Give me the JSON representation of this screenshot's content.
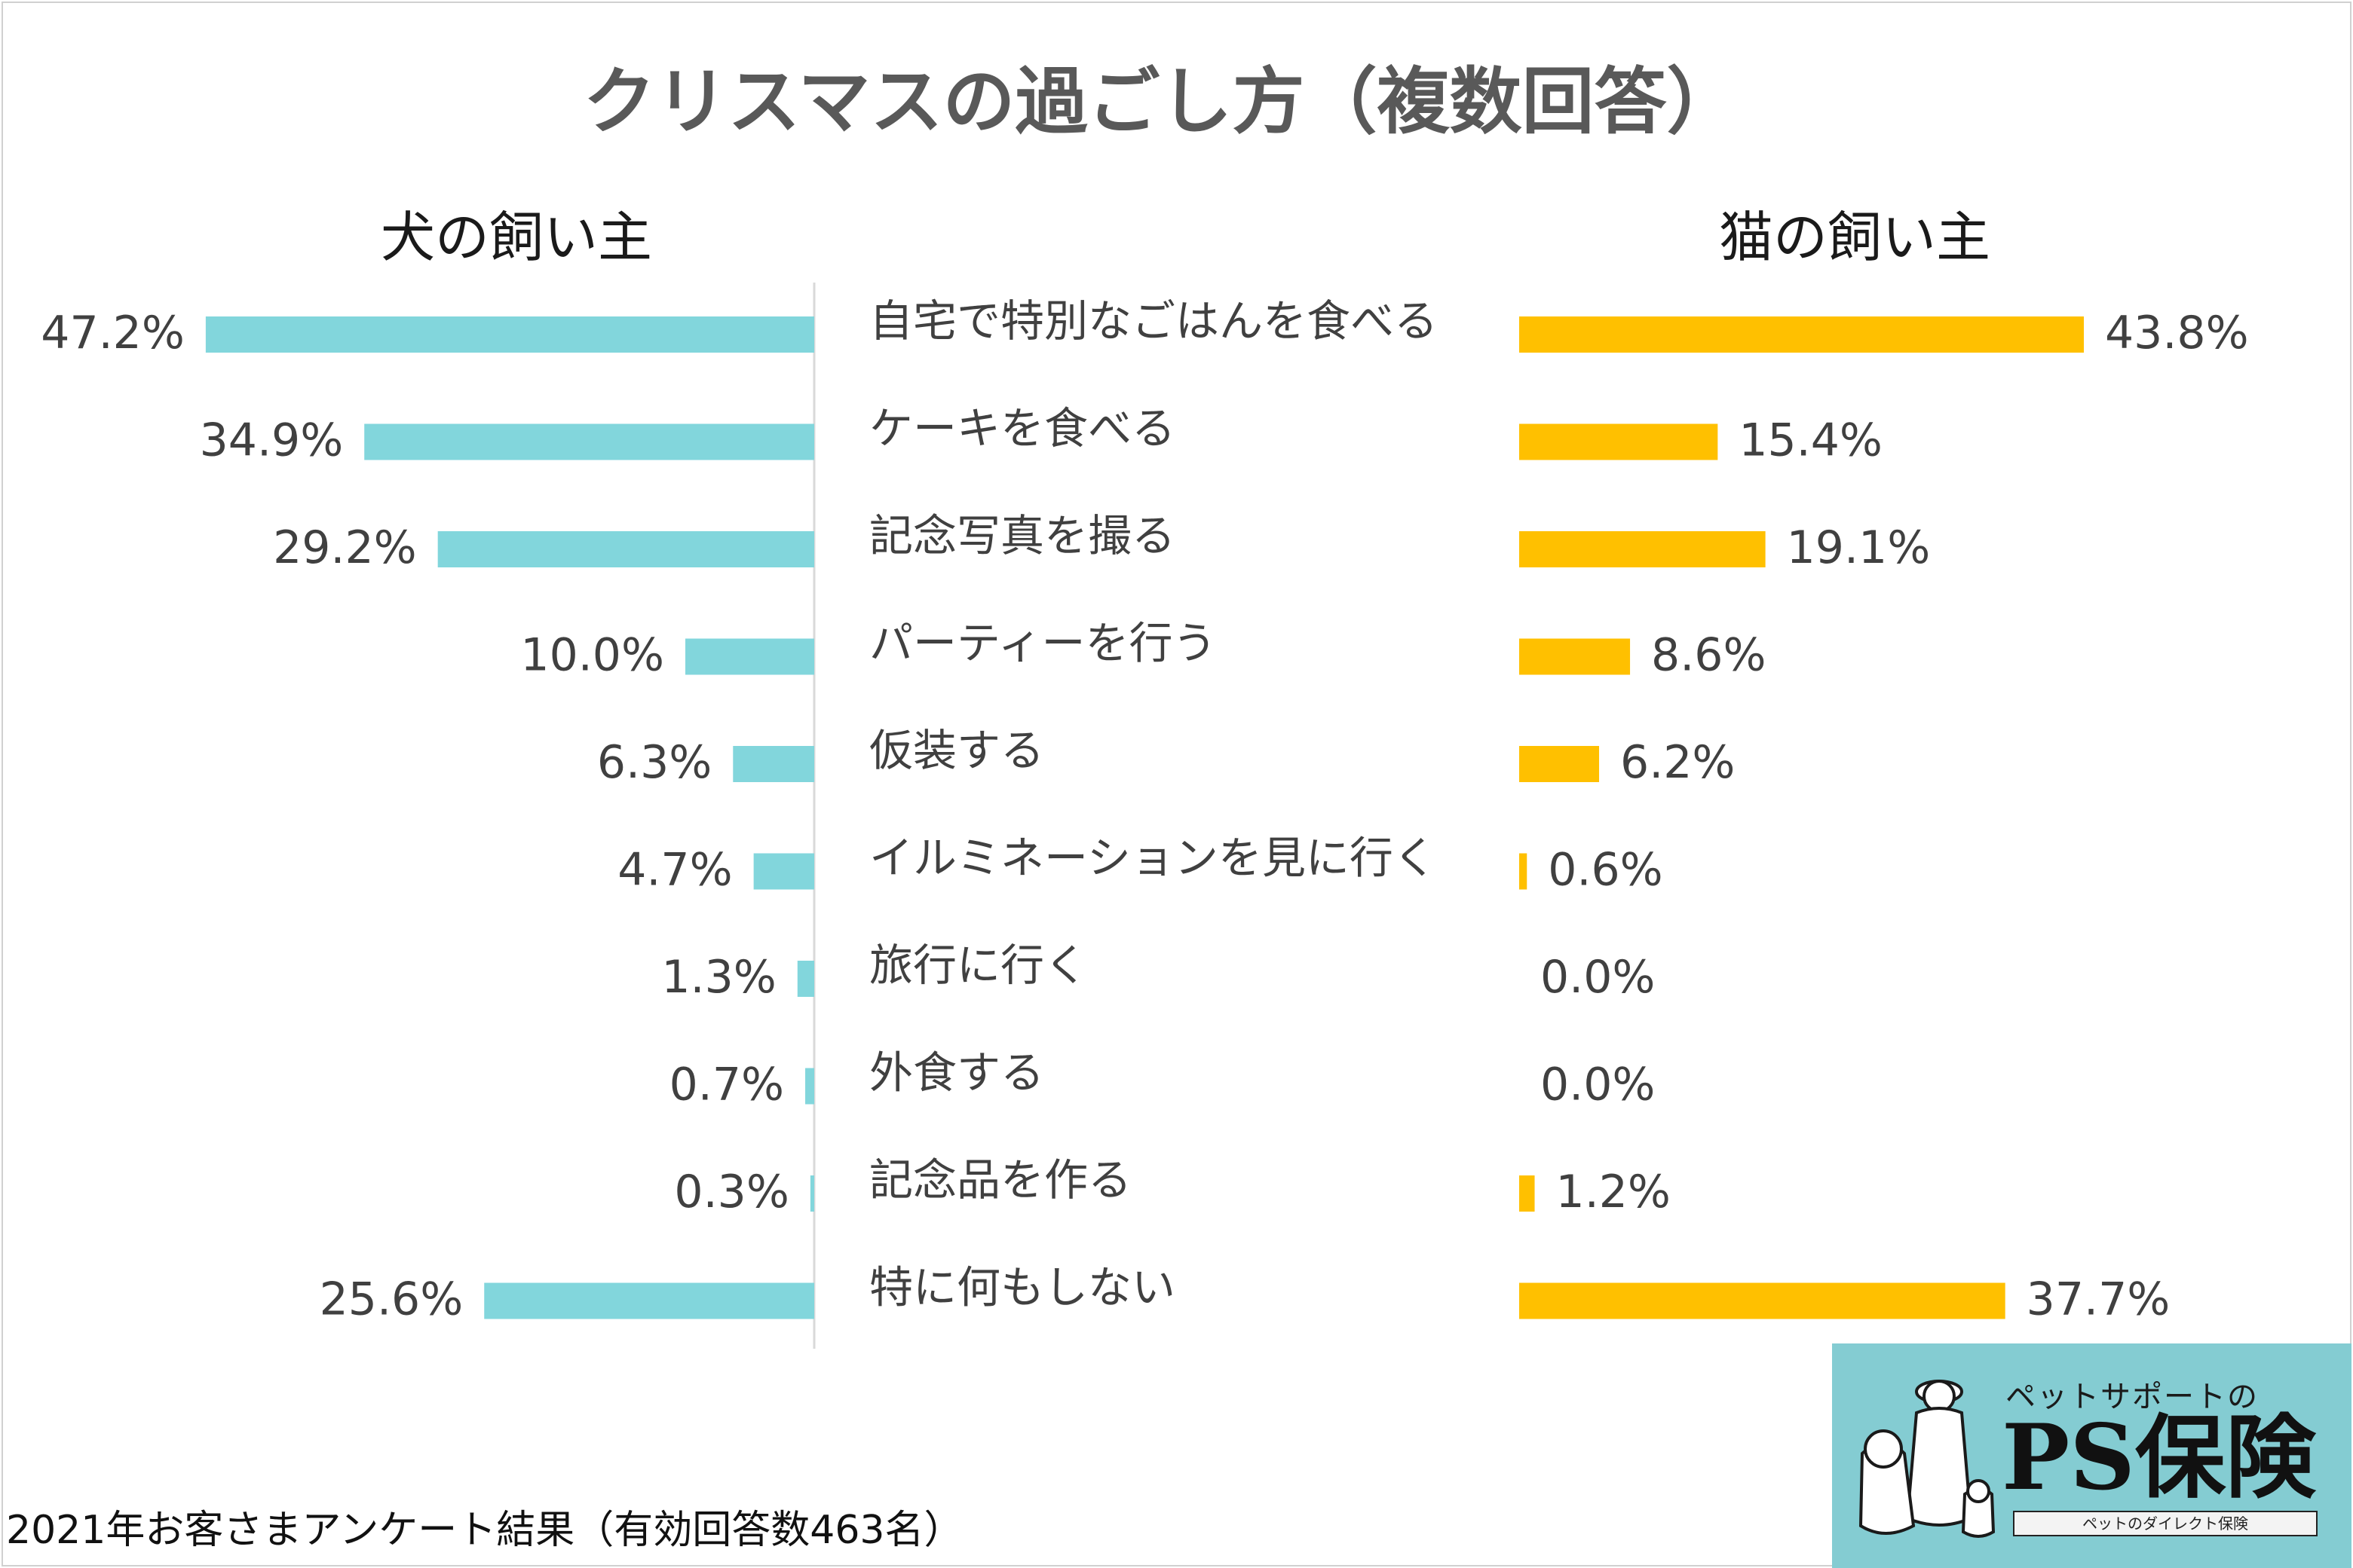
{
  "chart_data": {
    "type": "bar",
    "title": "クリスマスの過ごし方（複数回答）",
    "categories": [
      "自宅で特別なごはんを食べる",
      "ケーキを食べる",
      "記念写真を撮る",
      "パーティーを行う",
      "仮装する",
      "イルミネーションを見に行く",
      "旅行に行く",
      "外食する",
      "記念品を作る",
      "特に何もしない"
    ],
    "series": [
      {
        "name": "犬の飼い主",
        "color": "#82d6dc",
        "values": [
          47.2,
          34.9,
          29.2,
          10.0,
          6.3,
          4.7,
          1.3,
          0.7,
          0.3,
          25.6
        ],
        "labels": [
          "47.2%",
          "34.9%",
          "29.2%",
          "10.0%",
          "6.3%",
          "4.7%",
          "1.3%",
          "0.7%",
          "0.3%",
          "25.6%"
        ]
      },
      {
        "name": "猫の飼い主",
        "color": "#ffc000",
        "values": [
          43.8,
          15.4,
          19.1,
          8.6,
          6.2,
          0.6,
          0.0,
          0.0,
          1.2,
          37.7
        ],
        "labels": [
          "43.8%",
          "15.4%",
          "19.1%",
          "8.6%",
          "6.2%",
          "0.6%",
          "0.0%",
          "0.0%",
          "1.2%",
          "37.7%"
        ]
      }
    ],
    "xlabel": "",
    "ylabel": "",
    "xlim": [
      0,
      50
    ],
    "grid": false,
    "footnote": "2021年お客さまアンケート結果（有効回答数463名）"
  },
  "logo": {
    "tagline": "ペットサポートの",
    "brand": "PS保険",
    "subline": "ペットのダイレクト保険"
  },
  "colors": {
    "text": "#404040",
    "title": "#595959",
    "divider": "#d9d9d9",
    "logo_bg": "#84ccd2"
  }
}
